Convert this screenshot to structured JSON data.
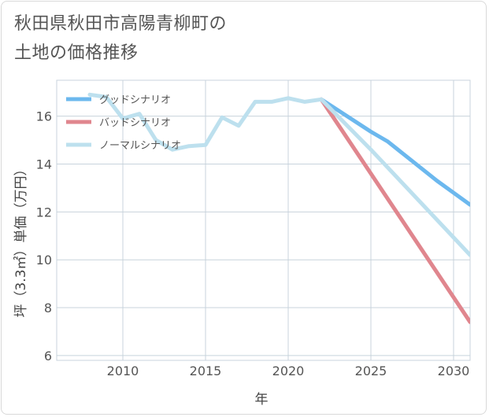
{
  "chart_data": {
    "type": "line",
    "title_line1": "秋田県秋田市高陽青柳町の",
    "title_line2": "土地の価格推移",
    "xlabel": "年",
    "ylabel": "坪（3.3㎡）単価（万円）",
    "xlim": [
      2006,
      2031
    ],
    "ylim": [
      5.8,
      17.5
    ],
    "xticks": [
      2010,
      2015,
      2020,
      2025,
      2030
    ],
    "yticks": [
      6,
      8,
      10,
      12,
      14,
      16
    ],
    "series": [
      {
        "name": "グッドシナリオ",
        "color": "#6cb8ee",
        "x": [
          2022,
          2025,
          2026,
          2027,
          2028,
          2029,
          2030,
          2031
        ],
        "values": [
          16.7,
          15.35,
          14.95,
          14.4,
          13.85,
          13.3,
          12.8,
          12.3
        ]
      },
      {
        "name": "バッドシナリオ",
        "color": "#e0868e",
        "x": [
          2022,
          2031
        ],
        "values": [
          16.7,
          7.4
        ]
      },
      {
        "name": "ノーマルシナリオ",
        "color": "#bde0ee",
        "x": [
          2008,
          2009,
          2010,
          2011,
          2012,
          2013,
          2014,
          2015,
          2016,
          2017,
          2018,
          2019,
          2020,
          2021,
          2022,
          2025,
          2031
        ],
        "values": [
          16.9,
          16.8,
          15.9,
          16.1,
          15.0,
          14.6,
          14.75,
          14.8,
          15.95,
          15.6,
          16.6,
          16.6,
          16.75,
          16.6,
          16.7,
          14.6,
          10.2
        ]
      }
    ]
  }
}
